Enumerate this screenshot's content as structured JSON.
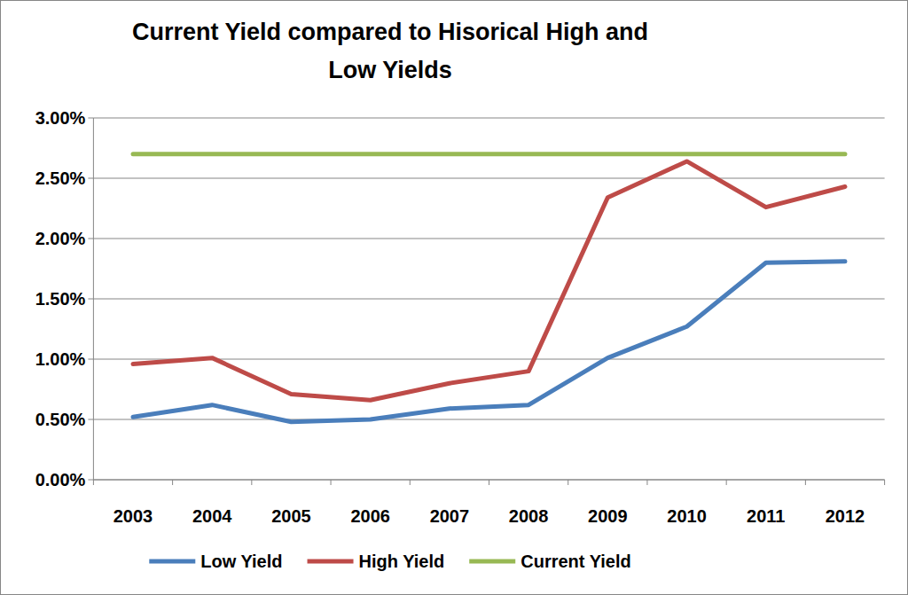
{
  "chart_data": {
    "type": "line",
    "title": "Current Yield compared to Hisorical High and Low Yields",
    "categories": [
      "2003",
      "2004",
      "2005",
      "2006",
      "2007",
      "2008",
      "2009",
      "2010",
      "2011",
      "2012"
    ],
    "series": [
      {
        "name": "Low Yield",
        "color": "#4a7ebb",
        "values": [
          0.52,
          0.62,
          0.48,
          0.5,
          0.59,
          0.62,
          1.01,
          1.27,
          1.8,
          1.81
        ]
      },
      {
        "name": "High Yield",
        "color": "#be4b48",
        "values": [
          0.96,
          1.01,
          0.71,
          0.66,
          0.8,
          0.9,
          2.34,
          2.64,
          2.26,
          2.43
        ]
      },
      {
        "name": "Current Yield",
        "color": "#98b954",
        "values": [
          2.7,
          2.7,
          2.7,
          2.7,
          2.7,
          2.7,
          2.7,
          2.7,
          2.7,
          2.7
        ]
      }
    ],
    "ylim": [
      0,
      3
    ],
    "yticks": [
      {
        "value": 0,
        "label": "0.00%"
      },
      {
        "value": 0.5,
        "label": "0.50%"
      },
      {
        "value": 1,
        "label": "1.00%"
      },
      {
        "value": 1.5,
        "label": "1.50%"
      },
      {
        "value": 2,
        "label": "2.00%"
      },
      {
        "value": 2.5,
        "label": "2.50%"
      },
      {
        "value": 3,
        "label": "3.00%"
      }
    ],
    "grid": true,
    "legend": "bottom"
  }
}
